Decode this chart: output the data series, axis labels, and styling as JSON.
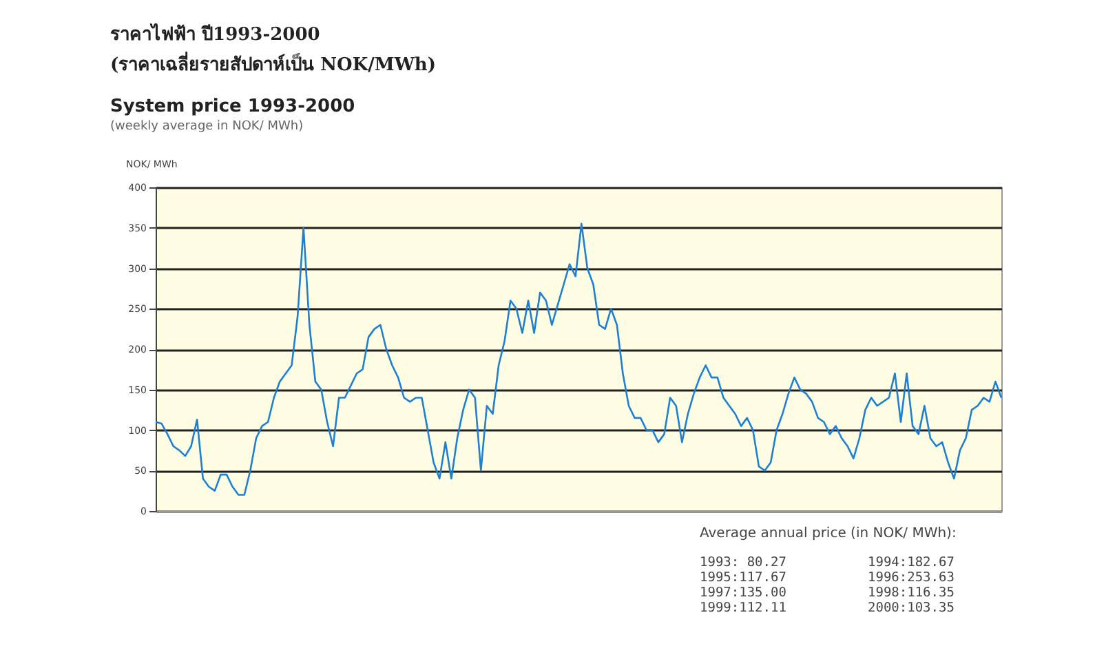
{
  "chart_data": {
    "type": "line",
    "title": "ราคาไฟฟ้า ปี1993-2000",
    "subtitle": "(ราคาเฉลี่ยรายสัปดาห์เป็น NOK/MWh)",
    "ylabel": "NOK/ MWh",
    "annotations": [
      "System price 1993-2000",
      "(weekly average in NOK/ MWh)",
      "Average annual price (in NOK/ MWh):",
      "1993: 80.27",
      "1994:182.67",
      "1995:117.67",
      "1996:253.63",
      "1997:135.00",
      "1998:116.35",
      "1999:112.11",
      "2000:103.35"
    ],
    "categories": [
      null,
      null,
      null,
      null,
      null,
      null,
      null,
      null,
      null,
      null,
      null,
      null,
      null,
      null,
      null,
      null,
      null,
      null,
      null,
      null,
      null,
      null,
      null,
      null,
      null,
      null,
      null,
      null,
      null,
      null,
      null,
      null,
      null,
      null,
      null,
      null,
      null,
      null,
      null,
      null,
      null,
      null,
      null,
      null,
      null,
      null,
      null,
      null,
      null,
      null,
      null,
      null,
      null,
      null,
      null,
      null,
      null,
      null,
      null,
      null,
      null,
      null,
      null,
      null,
      null,
      null,
      null,
      null,
      null,
      null,
      null,
      null,
      null,
      null,
      null,
      null,
      null,
      null,
      null,
      null,
      null,
      null,
      null,
      null,
      null,
      null,
      null,
      null,
      null,
      null,
      null,
      null,
      null,
      null,
      null,
      null,
      null,
      null,
      null,
      null,
      null,
      null,
      null,
      null,
      null,
      null,
      null,
      null,
      null,
      null,
      null,
      null,
      null,
      null,
      null,
      null,
      null,
      null,
      null,
      null,
      null,
      null,
      null,
      null,
      null,
      null,
      null,
      null,
      null,
      null,
      null,
      null,
      null,
      null,
      null,
      null,
      null,
      null,
      null,
      null,
      null,
      null,
      null,
      null
    ],
    "series": [
      {
        "color": "#1f7fd0",
        "values": [
          110,
          108,
          95,
          80,
          75,
          68,
          80,
          113,
          40,
          30,
          25,
          45,
          45,
          30,
          20,
          20,
          50,
          90,
          105,
          110,
          140,
          160,
          170,
          180,
          240,
          350,
          230,
          160,
          150,
          110,
          80,
          140,
          140,
          155,
          170,
          175,
          215,
          225,
          230,
          200,
          180,
          165,
          140,
          135,
          140,
          140,
          100,
          60,
          40,
          85,
          40,
          90,
          125,
          150,
          140,
          50,
          130,
          120,
          180,
          210,
          260,
          250,
          220,
          260,
          220,
          270,
          260,
          230,
          255,
          280,
          305,
          290,
          355,
          300,
          280,
          230,
          225,
          250,
          230,
          170,
          130,
          115,
          115,
          100,
          100,
          85,
          95,
          140,
          130,
          85,
          120,
          145,
          165,
          180,
          165,
          165,
          140,
          130,
          120,
          105,
          115,
          100,
          55,
          50,
          60,
          100,
          120,
          145,
          165,
          150,
          145,
          135,
          115,
          110,
          95,
          105,
          90,
          80,
          65,
          90,
          125,
          140,
          130,
          135,
          140,
          170,
          110,
          170,
          105,
          95,
          130,
          90,
          80,
          85,
          60,
          40,
          75,
          90,
          125,
          130,
          140,
          135,
          160,
          140
        ]
      }
    ],
    "ylim": [
      0,
      400
    ],
    "yticks": [
      0,
      50,
      100,
      150,
      200,
      250,
      300,
      350,
      400
    ],
    "grid": "y",
    "tick_labels": "y"
  }
}
